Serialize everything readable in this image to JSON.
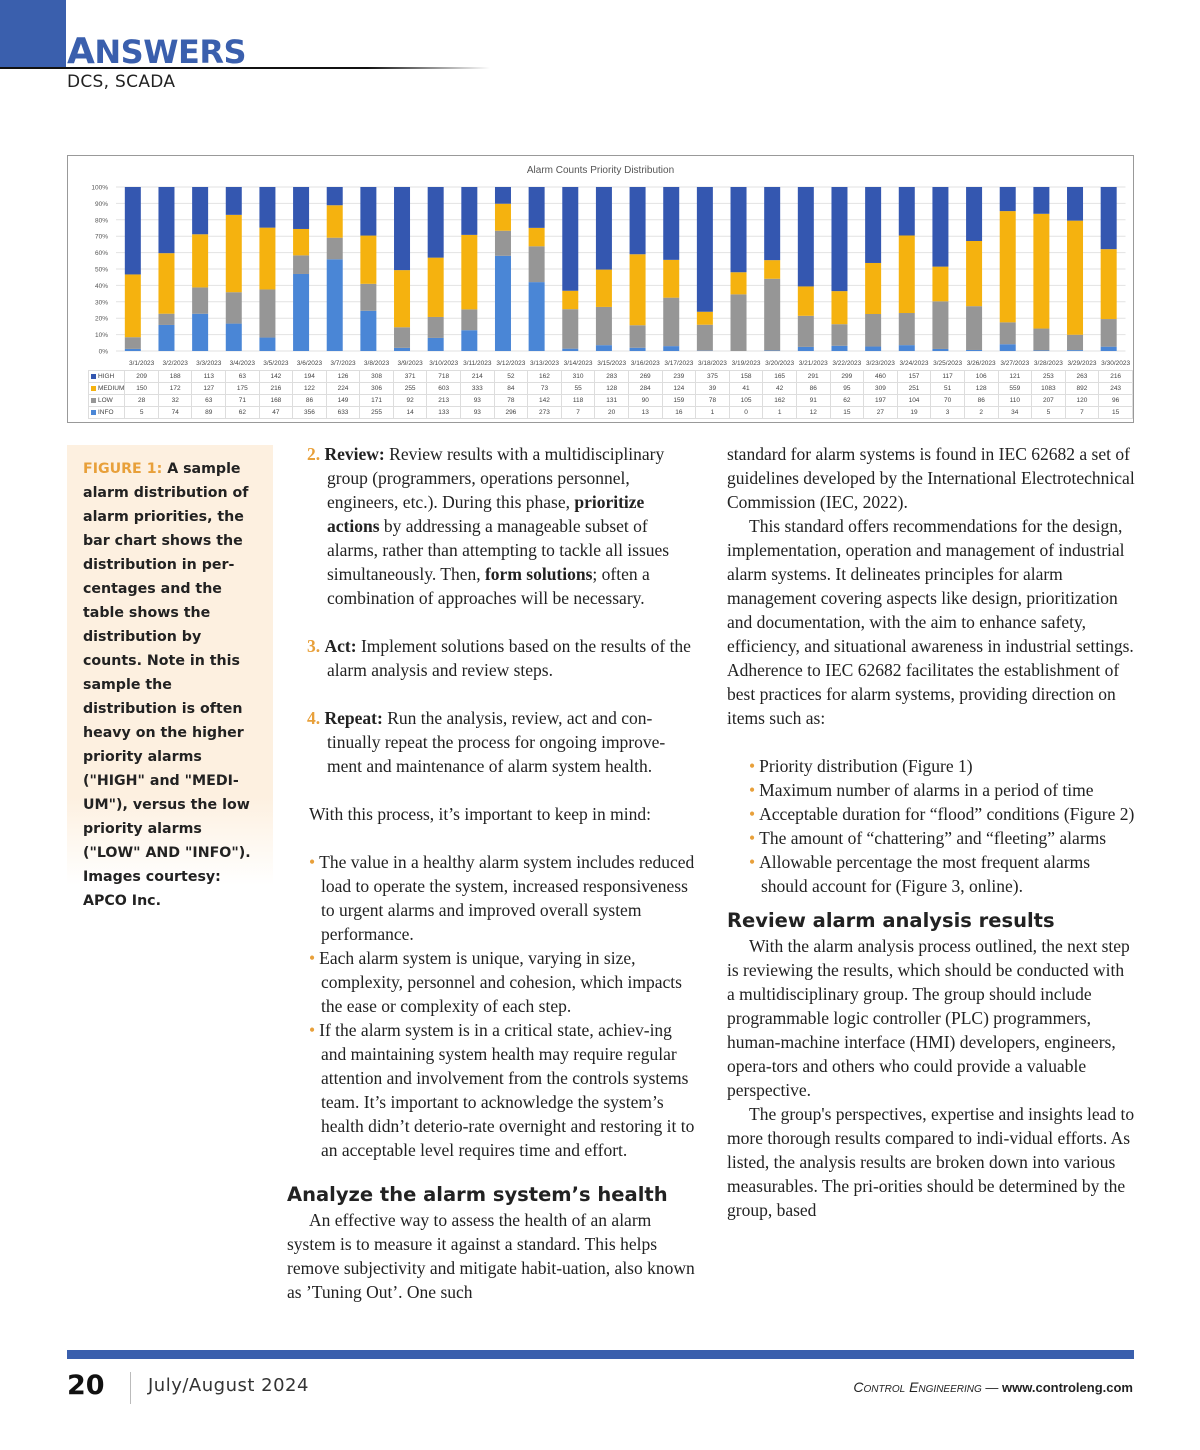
{
  "header": {
    "section_first": "A",
    "section_rest": "NSWERS",
    "subsection": "DCS, SCADA"
  },
  "chart_data": {
    "type": "bar",
    "stacked": "percent",
    "title": "Alarm Counts Priority Distribution",
    "ylim": [
      0,
      100
    ],
    "yticks": [
      "0%",
      "10%",
      "20%",
      "30%",
      "40%",
      "50%",
      "60%",
      "70%",
      "80%",
      "90%",
      "100%"
    ],
    "grid": true,
    "categories": [
      "3/1/2023",
      "3/2/2023",
      "3/3/2023",
      "3/4/2023",
      "3/5/2023",
      "3/6/2023",
      "3/7/2023",
      "3/8/2023",
      "3/9/2023",
      "3/10/2023",
      "3/11/2023",
      "3/12/2023",
      "3/13/2023",
      "3/14/2023",
      "3/15/2023",
      "3/16/2023",
      "3/17/2023",
      "3/18/2023",
      "3/19/2023",
      "3/20/2023",
      "3/21/2023",
      "3/22/2023",
      "3/23/2023",
      "3/24/2023",
      "3/25/2023",
      "3/26/2023",
      "3/27/2023",
      "3/28/2023",
      "3/29/2023",
      "3/30/2023"
    ],
    "series": [
      {
        "name": "HIGH",
        "color": "#3457b0",
        "values": [
          209,
          188,
          113,
          63,
          142,
          194,
          126,
          308,
          371,
          718,
          214,
          52,
          162,
          310,
          283,
          269,
          239,
          375,
          158,
          165,
          291,
          299,
          460,
          157,
          117,
          106,
          121,
          253,
          263,
          216
        ]
      },
      {
        "name": "MEDIUM",
        "color": "#f5b20f",
        "values": [
          150,
          172,
          127,
          175,
          216,
          122,
          224,
          306,
          255,
          603,
          333,
          84,
          73,
          55,
          128,
          284,
          124,
          39,
          41,
          42,
          86,
          95,
          309,
          251,
          51,
          128,
          559,
          1083,
          892,
          243
        ]
      },
      {
        "name": "LOW",
        "color": "#969696",
        "values": [
          28,
          32,
          63,
          71,
          168,
          86,
          149,
          171,
          92,
          213,
          93,
          78,
          142,
          118,
          131,
          90,
          159,
          78,
          105,
          162,
          91,
          62,
          197,
          104,
          70,
          86,
          110,
          207,
          120,
          96
        ]
      },
      {
        "name": "INFO",
        "color": "#4a86d6",
        "values": [
          5,
          74,
          89,
          62,
          47,
          356,
          633,
          255,
          14,
          133,
          93,
          296,
          273,
          7,
          20,
          13,
          16,
          1,
          0,
          1,
          12,
          15,
          27,
          19,
          3,
          2,
          34,
          5,
          7,
          15
        ]
      }
    ]
  },
  "caption": {
    "label": "FIGURE 1:",
    "text": " A sample alarm distribution of alarm priorities, the bar chart shows the distribution in per-centages and the table shows the distribution by counts. Note in this sample the distribution is often heavy on the higher priority alarms (\"HIGH\" and \"MEDI-UM\"), versus the low priority alarms (\"LOW\" AND \"INFO\"). Images courtesy: APCO Inc."
  },
  "middle": {
    "steps": [
      {
        "num": "2.",
        "title": "Review:",
        "parts": [
          " Review results with a multidisciplinary group (programmers, operations personnel, engineers, etc.). During this phase, ",
          "prioritize actions",
          " by addressing a manageable subset of alarms, rather than attempting to tackle all issues simultaneously. Then, ",
          "form solutions",
          "; often a combination of approaches will be necessary."
        ]
      },
      {
        "num": "3.",
        "title": "Act:",
        "text": " Implement solutions based on the results of the alarm analysis and review steps."
      },
      {
        "num": "4.",
        "title": "Repeat:",
        "text": " Run the analysis, review, act and con-tinually repeat the process for ongoing improve-ment and maintenance of alarm system health."
      }
    ],
    "intro": "With this process, it’s important to keep in mind:",
    "bullets": [
      "The value in a healthy alarm system includes reduced load to operate the system, increased responsiveness to urgent alarms and improved overall system performance.",
      "Each alarm system is unique, varying in size, complexity, personnel and cohesion, which impacts the ease or complexity of each step.",
      "If the alarm system is in a critical state, achiev-ing and maintaining system health may require regular attention and involvement from the controls systems team. It’s important to acknowledge the system’s health didn’t deterio-rate overnight and restoring it to an acceptable level requires time and effort."
    ],
    "heading": "Analyze the alarm system’s health",
    "para": "An effective way to assess the health of an alarm system is to measure it against a standard. This helps remove subjectivity and mitigate habit-uation, also known as ’Tuning Out’.  One such"
  },
  "right": {
    "p1": "standard for alarm systems is found in IEC 62682 a set of guidelines developed by the International Electrotechnical Commission (IEC, 2022).",
    "p2": "This standard offers recommendations for the design, implementation, operation and management of industrial alarm systems. It delineates principles for alarm management covering aspects like design, prioritization and documentation, with the aim to enhance safety, efficiency, and situational awareness in industrial settings. Adherence to IEC 62682 facilitates the establishment of best practices for alarm systems, providing direction on items such as:",
    "bullets": [
      "Priority distribution (Figure 1)",
      "Maximum number of alarms in a period of time",
      "Acceptable duration for “flood” conditions (Figure 2)",
      "The amount of “chattering” and “fleeting” alarms",
      "Allowable percentage the most frequent alarms should account for (Figure 3, online)."
    ],
    "heading": "Review alarm analysis results",
    "p3": "With the alarm analysis process outlined, the next step is reviewing the results, which should be conducted with a multidisciplinary group. The group should include programmable logic controller (PLC) programmers, human-machine interface (HMI) developers, engineers, opera-tors and others who could provide a valuable perspective.",
    "p4": "The group's perspectives, expertise and insights lead to more thorough results compared to indi-vidual efforts. As listed, the analysis results are broken down into various measurables. The pri-orities should be determined by the group, based"
  },
  "footer": {
    "page": "20",
    "issue": "July/August 2024",
    "magazine": "Control Engineering",
    "sep": " — ",
    "url": "www.controleng.com"
  },
  "colors": {
    "accent": "#3a5fad",
    "highlight": "#e8a03a"
  }
}
